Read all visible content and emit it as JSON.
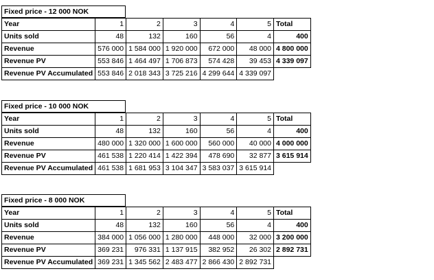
{
  "tables": [
    {
      "title": "Fixed price - 12 000 NOK",
      "year_label": "Year",
      "years": [
        "1",
        "2",
        "3",
        "4",
        "5"
      ],
      "total_label": "Total",
      "units_label": "Units sold",
      "units": [
        "48",
        "132",
        "160",
        "56",
        "4"
      ],
      "units_total": "400",
      "revenue_label": "Revenue",
      "revenue": [
        "576 000",
        "1 584 000",
        "1 920 000",
        "672 000",
        "48 000"
      ],
      "revenue_total": "4 800 000",
      "pv_label": "Revenue PV",
      "pv": [
        "553 846",
        "1 464 497",
        "1 706 873",
        "574 428",
        "39 453"
      ],
      "pv_total": "4 339 097",
      "acc_label": "Revenue PV Accumulated",
      "acc": [
        "553 846",
        "2 018 343",
        "3 725 216",
        "4 299 644",
        "4 339 097"
      ]
    },
    {
      "title": "Fixed price - 10 000 NOK",
      "year_label": "Year",
      "years": [
        "1",
        "2",
        "3",
        "4",
        "5"
      ],
      "total_label": "Total",
      "units_label": "Units sold",
      "units": [
        "48",
        "132",
        "160",
        "56",
        "4"
      ],
      "units_total": "400",
      "revenue_label": "Revenue",
      "revenue": [
        "480 000",
        "1 320 000",
        "1 600 000",
        "560 000",
        "40 000"
      ],
      "revenue_total": "4 000 000",
      "pv_label": "Revenue PV",
      "pv": [
        "461 538",
        "1 220 414",
        "1 422 394",
        "478 690",
        "32 877"
      ],
      "pv_total": "3 615 914",
      "acc_label": "Revenue PV Accumulated",
      "acc": [
        "461 538",
        "1 681 953",
        "3 104 347",
        "3 583 037",
        "3 615 914"
      ]
    },
    {
      "title": "Fixed price - 8 000 NOK",
      "year_label": "Year",
      "years": [
        "1",
        "2",
        "3",
        "4",
        "5"
      ],
      "total_label": "Total",
      "units_label": "Units sold",
      "units": [
        "48",
        "132",
        "160",
        "56",
        "4"
      ],
      "units_total": "400",
      "revenue_label": "Revenue",
      "revenue": [
        "384 000",
        "1 056 000",
        "1 280 000",
        "448 000",
        "32 000"
      ],
      "revenue_total": "3 200 000",
      "pv_label": "Revenue PV",
      "pv": [
        "369 231",
        "976 331",
        "1 137 915",
        "382 952",
        "26 302"
      ],
      "pv_total": "2 892 731",
      "acc_label": "Revenue PV Accumulated",
      "acc": [
        "369 231",
        "1 345 562",
        "2 483 477",
        "2 866 430",
        "2 892 731"
      ]
    }
  ]
}
